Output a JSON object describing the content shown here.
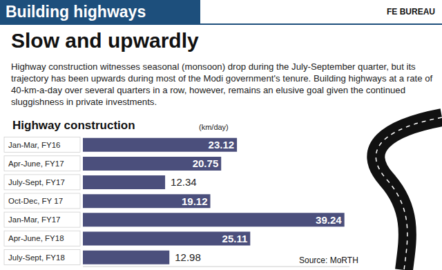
{
  "header": {
    "title": "Building highways",
    "byline": "FE BUREAU"
  },
  "headline": "Slow and upwardly",
  "intro": "Highway construction witnesses seasonal (monsoon) drop during the July-September quarter, but its trajectory has been upwards during most of the Modi government's tenure. Building highways at a rate of 40-km-a-day over several quarters in a row, however, remains an elusive goal given the continued sluggishness in private investments.",
  "source": "Source: MoRTH",
  "chart_data": {
    "type": "bar",
    "orientation": "horizontal",
    "title": "Highway construction",
    "xlabel": "(km/day)",
    "categories": [
      "Jan-Mar, FY16",
      "Apr-June, FY17",
      "July-Sept, FY17",
      "Oct-Dec, FY 17",
      "Jan-Mar, FY17",
      "Apr-June, FY18",
      "July-Sept, FY18"
    ],
    "values": [
      23.12,
      20.75,
      12.34,
      19.12,
      39.24,
      25.11,
      12.98
    ],
    "color": "#4b4f7c",
    "xlim": [
      0,
      40
    ],
    "data_labels": true,
    "tick_labels": "y",
    "grid": false
  }
}
